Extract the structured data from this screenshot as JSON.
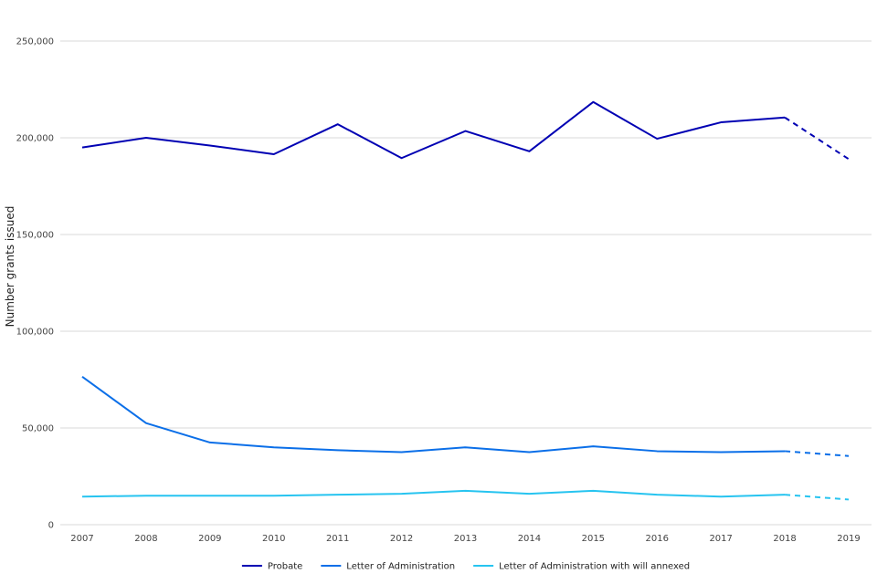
{
  "chart_data": {
    "type": "line",
    "title": "",
    "xlabel": "",
    "ylabel": "Number grants issued",
    "categories": [
      "2007",
      "2008",
      "2009",
      "2010",
      "2011",
      "2012",
      "2013",
      "2014",
      "2015",
      "2016",
      "2017",
      "2018",
      "2019"
    ],
    "y_ticks": [
      0,
      50000,
      100000,
      150000,
      200000,
      250000
    ],
    "y_tick_labels": [
      "0",
      "50,000",
      "100,000",
      "150,000",
      "200,000",
      "250,000"
    ],
    "ylim": [
      0,
      250000
    ],
    "grid": true,
    "legend_position": "bottom-center",
    "projected_from_index": 11,
    "series": [
      {
        "name": "Probate",
        "color": "#0000b3",
        "values": [
          195000,
          200000,
          196000,
          191500,
          207000,
          189500,
          203500,
          193000,
          218500,
          199500,
          208000,
          210500,
          189000
        ]
      },
      {
        "name": "Letter of Administration",
        "color": "#0b6fe8",
        "values": [
          76500,
          52500,
          42500,
          40000,
          38500,
          37500,
          40000,
          37500,
          40500,
          38000,
          37500,
          38000,
          35500
        ]
      },
      {
        "name": "Letter of Administration with will annexed",
        "color": "#27c4f0",
        "values": [
          14500,
          15000,
          15000,
          15000,
          15500,
          16000,
          17500,
          16000,
          17500,
          15500,
          14500,
          15500,
          13000
        ]
      }
    ]
  }
}
